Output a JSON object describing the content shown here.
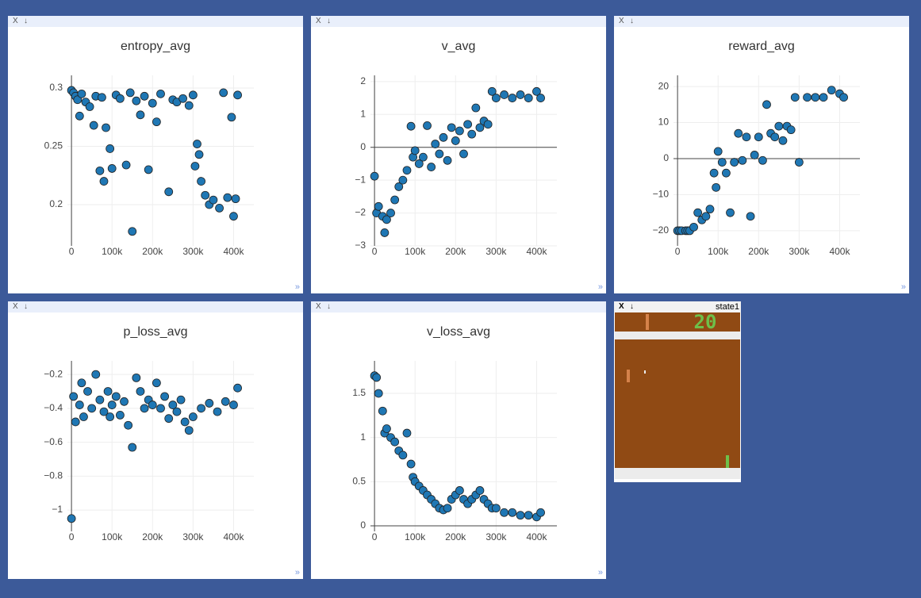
{
  "chart_data": [
    {
      "type": "scatter",
      "title": "entropy_avg",
      "color": "#1f77b4",
      "grid": true,
      "x": [
        0,
        5000,
        10000,
        15000,
        20000,
        25000,
        35000,
        45000,
        55000,
        60000,
        70000,
        75000,
        80000,
        85000,
        95000,
        100000,
        110000,
        120000,
        135000,
        145000,
        150000,
        160000,
        170000,
        180000,
        190000,
        200000,
        210000,
        220000,
        240000,
        250000,
        260000,
        275000,
        290000,
        300000,
        305000,
        310000,
        315000,
        320000,
        330000,
        340000,
        350000,
        365000,
        375000,
        385000,
        395000,
        400000,
        405000,
        410000
      ],
      "values": [
        0.298,
        0.296,
        0.293,
        0.29,
        0.276,
        0.295,
        0.288,
        0.284,
        0.268,
        0.293,
        0.229,
        0.292,
        0.22,
        0.266,
        0.248,
        0.231,
        0.294,
        0.291,
        0.234,
        0.296,
        0.177,
        0.289,
        0.277,
        0.293,
        0.23,
        0.287,
        0.271,
        0.295,
        0.211,
        0.29,
        0.288,
        0.291,
        0.285,
        0.294,
        0.233,
        0.252,
        0.243,
        0.22,
        0.208,
        0.2,
        0.204,
        0.197,
        0.296,
        0.206,
        0.275,
        0.19,
        0.205,
        0.294
      ],
      "xlim": [
        -10000,
        450000
      ],
      "ylim": [
        0.1646,
        0.3109
      ],
      "xticks": [
        0,
        {
          "value": 100000,
          "label": "100k"
        },
        {
          "value": 200000,
          "label": "200k"
        },
        {
          "value": 300000,
          "label": "300k"
        },
        {
          "value": 400000,
          "label": "400k"
        }
      ],
      "yticks": [
        0.2,
        0.25,
        0.3
      ]
    },
    {
      "type": "scatter",
      "title": "v_avg",
      "color": "#1f77b4",
      "grid": true,
      "x": [
        0,
        5000,
        10000,
        20000,
        25000,
        30000,
        40000,
        50000,
        60000,
        70000,
        80000,
        90000,
        95000,
        100000,
        110000,
        120000,
        130000,
        140000,
        150000,
        160000,
        170000,
        180000,
        190000,
        200000,
        210000,
        220000,
        230000,
        240000,
        250000,
        260000,
        270000,
        280000,
        290000,
        300000,
        320000,
        340000,
        360000,
        380000,
        400000,
        410000
      ],
      "values": [
        -0.88,
        -2.0,
        -1.8,
        -2.1,
        -2.6,
        -2.2,
        -2.0,
        -1.6,
        -1.2,
        -1.0,
        -0.7,
        0.64,
        -0.3,
        -0.1,
        -0.5,
        -0.3,
        0.66,
        -0.6,
        0.1,
        -0.2,
        0.3,
        -0.4,
        0.6,
        0.2,
        0.5,
        -0.2,
        0.7,
        0.4,
        1.2,
        0.6,
        0.8,
        0.7,
        1.7,
        1.5,
        1.6,
        1.5,
        1.6,
        1.5,
        1.7,
        1.5
      ],
      "xlim": [
        -10000,
        450000
      ],
      "ylim": [
        -3.0,
        2.19
      ],
      "xticks": [
        0,
        {
          "value": 100000,
          "label": "100k"
        },
        {
          "value": 200000,
          "label": "200k"
        },
        {
          "value": 300000,
          "label": "300k"
        },
        {
          "value": 400000,
          "label": "400k"
        }
      ],
      "yticks": [
        {
          "value": -3,
          "label": "−3"
        },
        {
          "value": -2,
          "label": "−2"
        },
        {
          "value": -1,
          "label": "−1"
        },
        0,
        1,
        2
      ]
    },
    {
      "type": "scatter",
      "title": "reward_avg",
      "color": "#1f77b4",
      "grid": true,
      "x": [
        0,
        5000,
        10000,
        20000,
        25000,
        30000,
        40000,
        50000,
        60000,
        70000,
        80000,
        90000,
        95000,
        100000,
        110000,
        120000,
        130000,
        140000,
        150000,
        160000,
        170000,
        180000,
        190000,
        200000,
        210000,
        220000,
        230000,
        240000,
        250000,
        260000,
        270000,
        280000,
        290000,
        300000,
        320000,
        340000,
        360000,
        380000,
        400000,
        410000
      ],
      "values": [
        -20,
        -20,
        -20,
        -20,
        -20,
        -20,
        -19,
        -15,
        -17,
        -16,
        -14,
        -4,
        -8,
        2,
        -1,
        -4,
        -15,
        -1,
        7,
        -0.5,
        6,
        -16,
        1,
        6,
        -0.5,
        15,
        7,
        6,
        9,
        5,
        9,
        8,
        17,
        -1,
        17,
        17,
        17,
        19,
        18,
        17
      ],
      "xlim": [
        -10000,
        450000
      ],
      "ylim": [
        -24.2,
        23.1
      ],
      "xticks": [
        0,
        {
          "value": 100000,
          "label": "100k"
        },
        {
          "value": 200000,
          "label": "200k"
        },
        {
          "value": 300000,
          "label": "300k"
        },
        {
          "value": 400000,
          "label": "400k"
        }
      ],
      "yticks": [
        {
          "value": -20,
          "label": "−20"
        },
        {
          "value": -10,
          "label": "−10"
        },
        0,
        10,
        20
      ]
    },
    {
      "type": "scatter",
      "title": "p_loss_avg",
      "color": "#1f77b4",
      "grid": true,
      "x": [
        0,
        5000,
        10000,
        20000,
        25000,
        30000,
        40000,
        50000,
        60000,
        70000,
        80000,
        90000,
        95000,
        100000,
        110000,
        120000,
        130000,
        140000,
        150000,
        160000,
        170000,
        180000,
        190000,
        200000,
        210000,
        220000,
        230000,
        240000,
        250000,
        260000,
        270000,
        280000,
        290000,
        300000,
        320000,
        340000,
        360000,
        380000,
        400000,
        410000
      ],
      "values": [
        -1.05,
        -0.33,
        -0.48,
        -0.38,
        -0.25,
        -0.45,
        -0.3,
        -0.4,
        -0.2,
        -0.35,
        -0.42,
        -0.3,
        -0.45,
        -0.38,
        -0.33,
        -0.44,
        -0.36,
        -0.5,
        -0.63,
        -0.22,
        -0.3,
        -0.4,
        -0.35,
        -0.38,
        -0.25,
        -0.4,
        -0.33,
        -0.46,
        -0.38,
        -0.42,
        -0.35,
        -0.48,
        -0.53,
        -0.45,
        -0.4,
        -0.37,
        -0.42,
        -0.36,
        -0.38,
        -0.28
      ],
      "xlim": [
        -10000,
        450000
      ],
      "ylim": [
        -1.126,
        -0.12
      ],
      "xticks": [
        0,
        {
          "value": 100000,
          "label": "100k"
        },
        {
          "value": 200000,
          "label": "200k"
        },
        {
          "value": 300000,
          "label": "300k"
        },
        {
          "value": 400000,
          "label": "400k"
        }
      ],
      "yticks": [
        {
          "value": -1,
          "label": "−1"
        },
        {
          "value": -0.8,
          "label": "−0.8"
        },
        {
          "value": -0.6,
          "label": "−0.6"
        },
        {
          "value": -0.4,
          "label": "−0.4"
        },
        {
          "value": -0.2,
          "label": "−0.2"
        }
      ]
    },
    {
      "type": "scatter",
      "title": "v_loss_avg",
      "color": "#1f77b4",
      "grid": true,
      "x": [
        0,
        5000,
        10000,
        20000,
        25000,
        30000,
        40000,
        50000,
        60000,
        70000,
        80000,
        90000,
        95000,
        100000,
        110000,
        120000,
        130000,
        140000,
        150000,
        160000,
        170000,
        180000,
        190000,
        200000,
        210000,
        220000,
        230000,
        240000,
        250000,
        260000,
        270000,
        280000,
        290000,
        300000,
        320000,
        340000,
        360000,
        380000,
        400000,
        410000
      ],
      "values": [
        1.7,
        1.68,
        1.5,
        1.3,
        1.05,
        1.1,
        1.0,
        0.95,
        0.85,
        0.8,
        1.05,
        0.7,
        0.55,
        0.5,
        0.45,
        0.4,
        0.35,
        0.3,
        0.25,
        0.2,
        0.18,
        0.2,
        0.3,
        0.35,
        0.4,
        0.3,
        0.25,
        0.3,
        0.35,
        0.4,
        0.3,
        0.25,
        0.2,
        0.2,
        0.15,
        0.15,
        0.12,
        0.12,
        0.1,
        0.15
      ],
      "xlim": [
        -10000,
        450000
      ],
      "ylim": [
        -0.063,
        1.868
      ],
      "xticks": [
        0,
        {
          "value": 100000,
          "label": "100k"
        },
        {
          "value": 200000,
          "label": "200k"
        },
        {
          "value": 300000,
          "label": "300k"
        },
        {
          "value": 400000,
          "label": "400k"
        }
      ],
      "yticks": [
        0,
        0.5,
        1,
        1.5
      ]
    }
  ],
  "window_controls": {
    "close": "X",
    "download": "↓",
    "expand": "»"
  },
  "image_pane": {
    "title": "state1",
    "score": "20"
  }
}
